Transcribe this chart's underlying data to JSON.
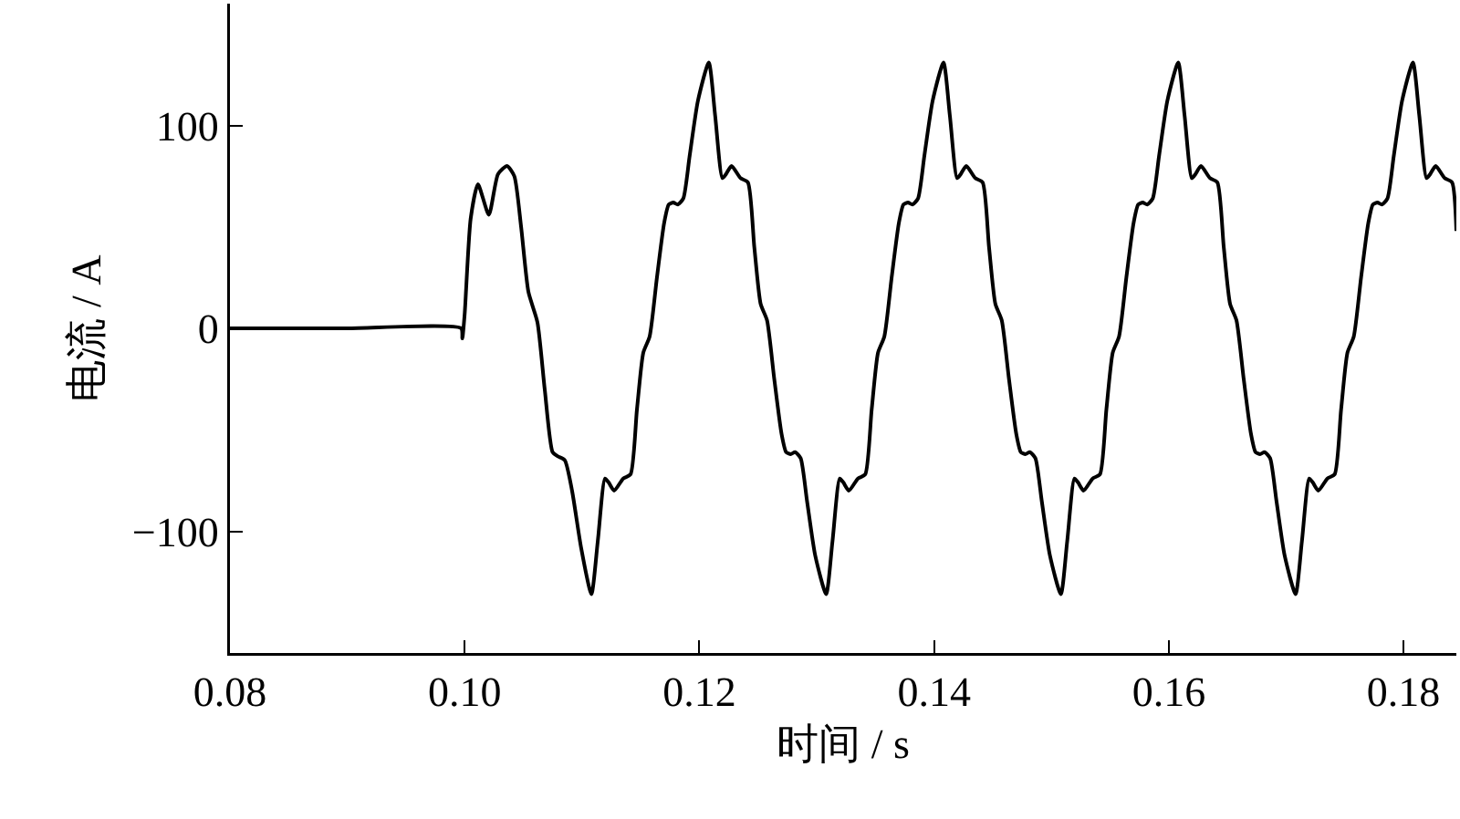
{
  "chart_data": {
    "type": "line",
    "xlabel": "时间 / s",
    "ylabel": "电流 / A",
    "grid": false,
    "line_style": "solid",
    "marker": "none",
    "xlim": [
      0.08,
      0.1845
    ],
    "ylim": [
      -160,
      160
    ],
    "xticks": [
      {
        "value": 0.08,
        "label": "0.08"
      },
      {
        "value": 0.1,
        "label": "0.10"
      },
      {
        "value": 0.12,
        "label": "0.12"
      },
      {
        "value": 0.14,
        "label": "0.14"
      },
      {
        "value": 0.16,
        "label": "0.16"
      },
      {
        "value": 0.18,
        "label": "0.18"
      }
    ],
    "yticks": [
      {
        "value": -100,
        "label": "−100"
      },
      0,
      100
    ],
    "series": [
      {
        "color": "#000000",
        "x": [
          0.08,
          0.09,
          0.0997,
          0.0998,
          0.1,
          0.10051,
          0.10113,
          0.10206,
          0.10284,
          0.10361,
          0.10423,
          0.10481,
          0.10543,
          0.1062,
          0.10682,
          0.10749,
          0.10791,
          0.10853,
          0.10915,
          0.10992,
          0.1108,
          0.11134,
          0.11196,
          0.11227,
          0.11274,
          0.11351,
          0.11413,
          0.11468,
          0.11522,
          0.11576,
          0.11638,
          0.117,
          0.11739,
          0.11778,
          0.11816,
          0.11863,
          0.11917,
          0.11987,
          0.1208,
          0.12134,
          0.12196,
          0.12227,
          0.12274,
          0.12351,
          0.12413,
          0.12468,
          0.12522,
          0.12576,
          0.12638,
          0.127,
          0.12739,
          0.12778,
          0.12816,
          0.12863,
          0.12917,
          0.12987,
          0.1308,
          0.13134,
          0.13196,
          0.13227,
          0.13274,
          0.13351,
          0.13413,
          0.13468,
          0.13522,
          0.13576,
          0.13638,
          0.137,
          0.13739,
          0.13778,
          0.13816,
          0.13863,
          0.13917,
          0.13987,
          0.1408,
          0.14134,
          0.14196,
          0.14227,
          0.14274,
          0.14351,
          0.14413,
          0.14468,
          0.14522,
          0.14576,
          0.14638,
          0.147,
          0.14739,
          0.14778,
          0.14816,
          0.14863,
          0.14917,
          0.14987,
          0.1508,
          0.15134,
          0.15196,
          0.15227,
          0.15274,
          0.15351,
          0.15413,
          0.15468,
          0.15522,
          0.15576,
          0.15638,
          0.157,
          0.15739,
          0.15778,
          0.15816,
          0.15863,
          0.15917,
          0.15987,
          0.1608,
          0.16134,
          0.16196,
          0.16227,
          0.16274,
          0.16351,
          0.16413,
          0.16468,
          0.16522,
          0.16576,
          0.16638,
          0.167,
          0.16739,
          0.16778,
          0.16816,
          0.16863,
          0.16917,
          0.16987,
          0.1708,
          0.17134,
          0.17196,
          0.17227,
          0.17274,
          0.17351,
          0.17413,
          0.17468,
          0.17522,
          0.17576,
          0.17638,
          0.177,
          0.17739,
          0.17778,
          0.17816,
          0.17863,
          0.17917,
          0.17987,
          0.1808,
          0.18134,
          0.18196,
          0.18227,
          0.18274,
          0.18351,
          0.18413,
          0.1845
        ],
        "values": [
          0,
          0,
          0,
          -5,
          7,
          54,
          71,
          56,
          76,
          80,
          75,
          50,
          18,
          3,
          -30,
          -61,
          -63,
          -65,
          -80,
          -108,
          -131,
          -105,
          -74,
          -76,
          -80,
          -74,
          -72,
          -40,
          -12,
          -4,
          25,
          52,
          61,
          62,
          61,
          64,
          85,
          112,
          131,
          105,
          74,
          76,
          80,
          74,
          72,
          40,
          12,
          4,
          -25,
          -52,
          -61,
          -62,
          -61,
          -64,
          -85,
          -112,
          -131,
          -105,
          -74,
          -76,
          -80,
          -74,
          -72,
          -40,
          -12,
          -4,
          25,
          52,
          61,
          62,
          61,
          64,
          85,
          112,
          131,
          105,
          74,
          76,
          80,
          74,
          72,
          40,
          12,
          4,
          -25,
          -52,
          -61,
          -62,
          -61,
          -64,
          -85,
          -112,
          -131,
          -105,
          -74,
          -76,
          -80,
          -74,
          -72,
          -40,
          -12,
          -4,
          25,
          52,
          61,
          62,
          61,
          64,
          85,
          112,
          131,
          105,
          74,
          76,
          80,
          74,
          72,
          40,
          12,
          4,
          -25,
          -52,
          -61,
          -62,
          -61,
          -64,
          -85,
          -112,
          -131,
          -105,
          -74,
          -76,
          -80,
          -74,
          -72,
          -40,
          -12,
          -4,
          25,
          52,
          61,
          62,
          61,
          64,
          85,
          112,
          131,
          105,
          74,
          76,
          80,
          74,
          72,
          48
        ]
      }
    ]
  }
}
